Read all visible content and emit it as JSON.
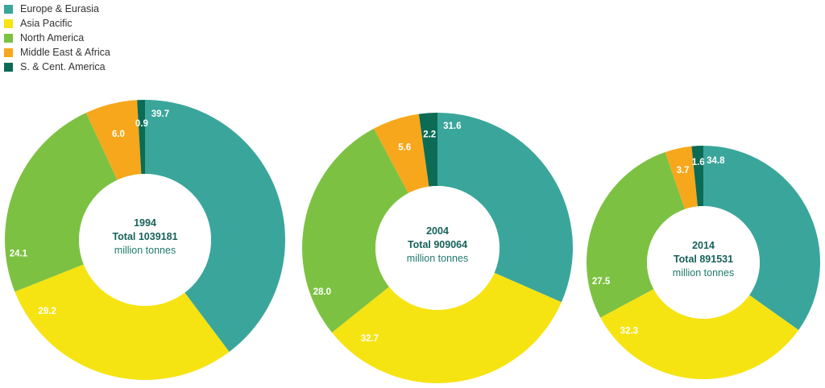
{
  "chart_data": {
    "type": "pie",
    "legend": [
      {
        "name": "Europe & Eurasia",
        "color": "#3aa69b"
      },
      {
        "name": "Asia Pacific",
        "color": "#f6e312"
      },
      {
        "name": "North America",
        "color": "#7dc142"
      },
      {
        "name": "Middle East & Africa",
        "color": "#f7a71b"
      },
      {
        "name": "S. & Cent. America",
        "color": "#0b6b55"
      }
    ],
    "legend_placement": "top-left",
    "charts": [
      {
        "year": "1994",
        "total": "Total 1039181",
        "unit": "million tonnes",
        "values": [
          39.7,
          29.2,
          24.1,
          6.0,
          0.9
        ],
        "labels": [
          "39.7",
          "29.2",
          "24.1",
          "6.0",
          "0.9"
        ]
      },
      {
        "year": "2004",
        "total": "Total 909064",
        "unit": "million tonnes",
        "values": [
          31.6,
          32.7,
          28.0,
          5.6,
          2.2
        ],
        "labels": [
          "31.6",
          "32.7",
          "28.0",
          "5.6",
          "2.2"
        ]
      },
      {
        "year": "2014",
        "total": "Total 891531",
        "unit": "million tonnes",
        "values": [
          34.8,
          32.3,
          27.5,
          3.7,
          1.6
        ],
        "labels": [
          "34.8",
          "32.3",
          "27.5",
          "3.7",
          "1.6"
        ]
      }
    ]
  }
}
